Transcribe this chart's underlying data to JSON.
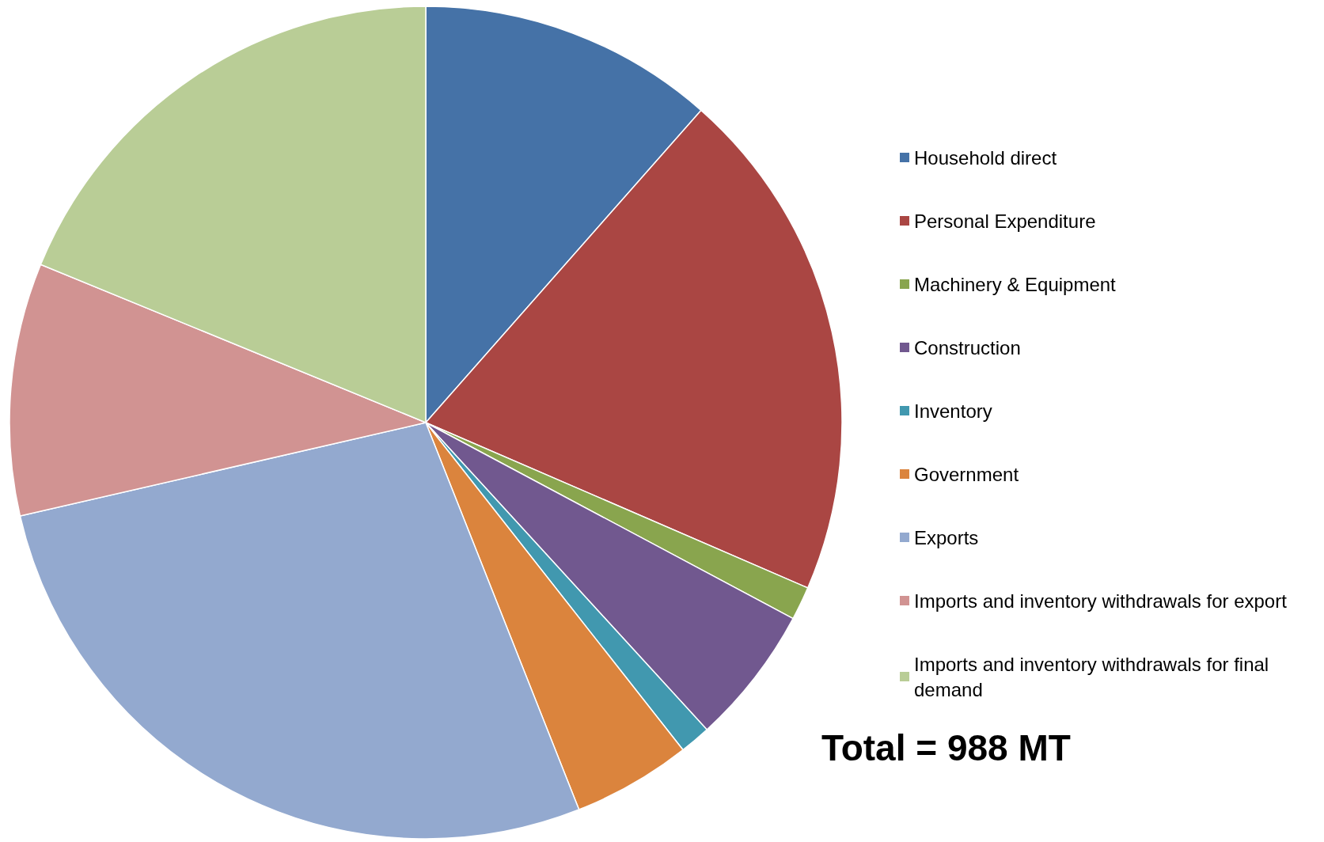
{
  "chart_data": {
    "type": "pie",
    "categories": [
      "Household direct",
      "Personal Expenditure",
      "Machinery & Equipment",
      "Construction",
      "Inventory",
      "Government",
      "Exports",
      "Imports and inventory withdrawals for export",
      "Imports and inventory withdrawals for final demand"
    ],
    "values": [
      11.5,
      20.0,
      1.3,
      5.4,
      1.2,
      4.6,
      27.4,
      9.8,
      18.8
    ],
    "colors": [
      "#4572a7",
      "#aa4643",
      "#89a54e",
      "#71588f",
      "#4198af",
      "#db843d",
      "#93a9cf",
      "#d19392",
      "#b9cd96"
    ],
    "legend": "right",
    "annotations": [
      "Total = 988 MT"
    ]
  }
}
